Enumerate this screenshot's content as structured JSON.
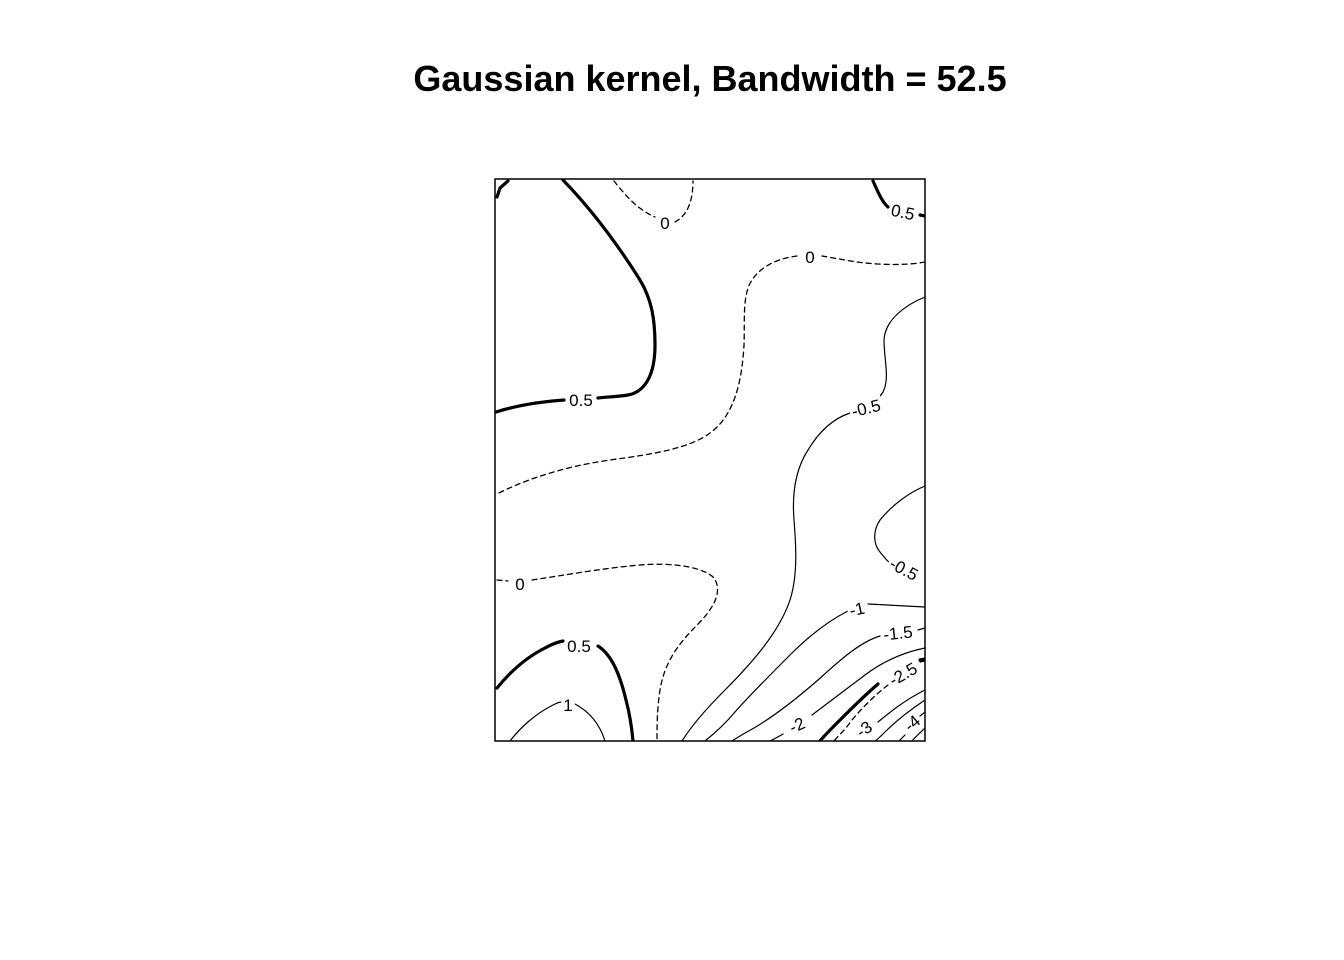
{
  "chart_data": {
    "type": "contour",
    "title": "Gaussian kernel, Bandwidth = 52.5",
    "xlabel": "",
    "ylabel": "",
    "axes_visible": false,
    "grid": false,
    "legend": "none",
    "line_styles": {
      "negative": "solid",
      "zero": "dashed",
      "positive": "solid",
      "emphasized_levels": [
        0.5,
        -3
      ]
    },
    "levels": [
      1,
      0.5,
      0,
      -0.5,
      -1,
      -1.5,
      -2,
      -2.5,
      -3,
      -4
    ],
    "contour_labels": [
      {
        "level": "0.5",
        "region": "upper-left"
      },
      {
        "level": "0",
        "region": "top-center"
      },
      {
        "level": "0.5",
        "region": "top-right"
      },
      {
        "level": "0",
        "region": "upper-right"
      },
      {
        "level": "-0.5",
        "region": "center-right"
      },
      {
        "level": "-0.5",
        "region": "right"
      },
      {
        "level": "0",
        "region": "lower-left"
      },
      {
        "level": "0.5",
        "region": "lower-left"
      },
      {
        "level": "1",
        "region": "bottom-left"
      },
      {
        "level": "-1",
        "region": "lower-right"
      },
      {
        "level": "-1.5",
        "region": "lower-right"
      },
      {
        "level": "-2",
        "region": "bottom-right"
      },
      {
        "level": "-2.5",
        "region": "bottom-right"
      },
      {
        "level": "-3",
        "region": "bottom-right"
      },
      {
        "level": "-4",
        "region": "bottom-right"
      }
    ]
  }
}
